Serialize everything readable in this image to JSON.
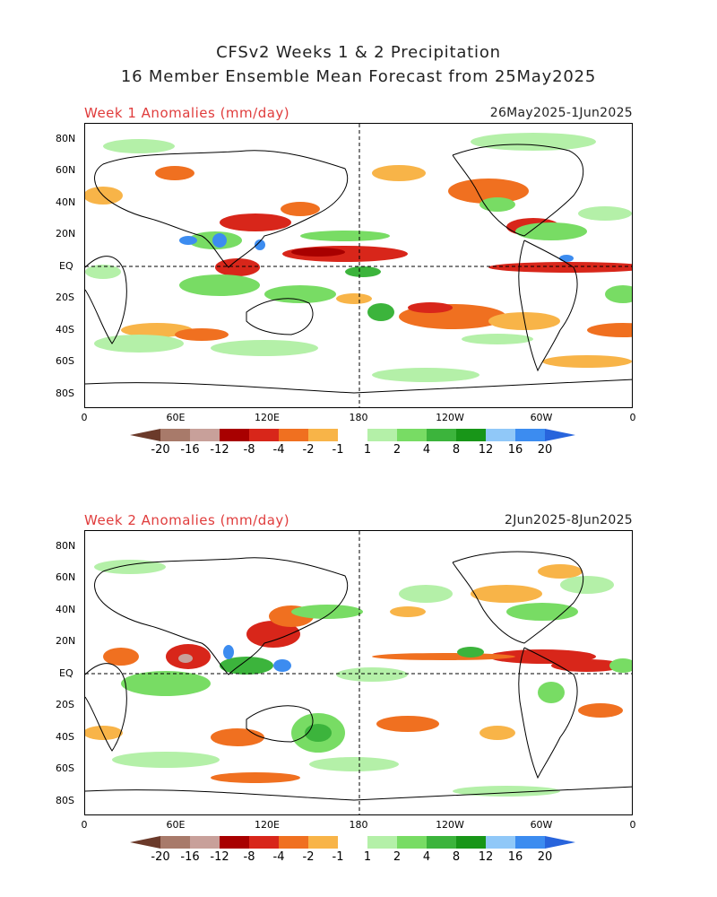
{
  "header": {
    "title_line1": "CFSv2 Weeks 1 & 2 Precipitation",
    "title_line2": "16 Member Ensemble Mean Forecast from 25May2025"
  },
  "panels": [
    {
      "title": "Week 1 Anomalies (mm/day)",
      "dates": "26May2025-1Jun2025"
    },
    {
      "title": "Week 2 Anomalies (mm/day)",
      "dates": "2Jun2025-8Jun2025"
    }
  ],
  "lat_labels": [
    "80N",
    "60N",
    "40N",
    "20N",
    "EQ",
    "20S",
    "40S",
    "60S",
    "80S"
  ],
  "lon_labels": [
    "0",
    "60E",
    "120E",
    "180",
    "120W",
    "60W",
    "0"
  ],
  "colorbar": {
    "labels": [
      "-20",
      "-16",
      "-12",
      "-8",
      "-4",
      "-2",
      "-1",
      "1",
      "2",
      "4",
      "8",
      "12",
      "16",
      "20"
    ],
    "colors": [
      "#6b3a2a",
      "#a87a6a",
      "#c8a09a",
      "#a80000",
      "#d8261a",
      "#f07020",
      "#f8b448",
      "#ffffff",
      "#b4f0a8",
      "#78dc64",
      "#3cb43c",
      "#189618",
      "#90c8f8",
      "#3c8cf0",
      "#2864dc"
    ]
  },
  "chart_data": [
    {
      "type": "heatmap",
      "title": "Week 1 Anomalies (mm/day)",
      "period": "26May2025-1Jun2025",
      "x_ticks": [
        "0",
        "60E",
        "120E",
        "180",
        "120W",
        "60W",
        "0"
      ],
      "y_ticks": [
        "80N",
        "60N",
        "40N",
        "20N",
        "EQ",
        "20S",
        "40S",
        "60S",
        "80S"
      ],
      "levels": [
        -20,
        -16,
        -12,
        -8,
        -4,
        -2,
        -1,
        1,
        2,
        4,
        8,
        12,
        16,
        20
      ],
      "units": "mm/day"
    },
    {
      "type": "heatmap",
      "title": "Week 2 Anomalies (mm/day)",
      "period": "2Jun2025-8Jun2025",
      "x_ticks": [
        "0",
        "60E",
        "120E",
        "180",
        "120W",
        "60W",
        "0"
      ],
      "y_ticks": [
        "80N",
        "60N",
        "40N",
        "20N",
        "EQ",
        "20S",
        "40S",
        "60S",
        "80S"
      ],
      "levels": [
        -20,
        -16,
        -12,
        -8,
        -4,
        -2,
        -1,
        1,
        2,
        4,
        8,
        12,
        16,
        20
      ],
      "units": "mm/day"
    }
  ]
}
